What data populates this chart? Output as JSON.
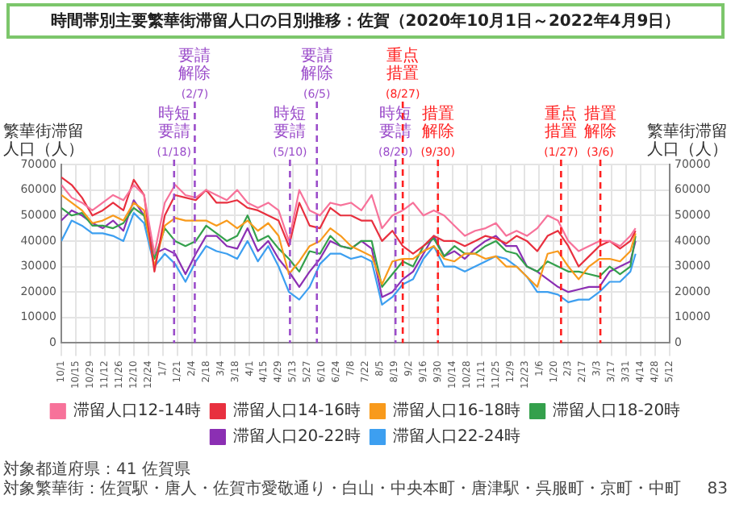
{
  "chart_data": {
    "type": "line",
    "title": "時間帯別主要繁華街滞留人口の日別推移：佐賀（2020年10月1日～2022年4月9日）",
    "ylabel": "繁華街滞留人口（人）",
    "y2label": "繁華街滞留人口（人）",
    "x": [
      "2020-10-01",
      "2020-10-11",
      "2020-10-21",
      "2020-10-31",
      "2020-11-10",
      "2020-11-20",
      "2020-11-30",
      "2020-12-10",
      "2020-12-20",
      "2020-12-30",
      "2021-01-09",
      "2021-01-19",
      "2021-01-29",
      "2021-02-08",
      "2021-02-18",
      "2021-02-28",
      "2021-03-10",
      "2021-03-20",
      "2021-03-30",
      "2021-04-09",
      "2021-04-19",
      "2021-04-29",
      "2021-05-09",
      "2021-05-19",
      "2021-05-29",
      "2021-06-08",
      "2021-06-18",
      "2021-06-28",
      "2021-07-08",
      "2021-07-18",
      "2021-07-28",
      "2021-08-07",
      "2021-08-17",
      "2021-08-27",
      "2021-09-06",
      "2021-09-16",
      "2021-09-26",
      "2021-10-06",
      "2021-10-16",
      "2021-10-26",
      "2021-11-05",
      "2021-11-15",
      "2021-11-25",
      "2021-12-05",
      "2021-12-15",
      "2021-12-25",
      "2022-01-04",
      "2022-01-14",
      "2022-01-24",
      "2022-02-03",
      "2022-02-13",
      "2022-02-23",
      "2022-03-05",
      "2022-03-15",
      "2022-03-25",
      "2022-04-04",
      "2022-04-09"
    ],
    "series": [
      {
        "name": "滞留人口12-14時",
        "color": "#f7729a",
        "values": [
          62000,
          57000,
          55000,
          52000,
          55000,
          58000,
          56000,
          62000,
          58000,
          35000,
          55000,
          62000,
          58000,
          57000,
          60000,
          58000,
          56000,
          60000,
          55000,
          53000,
          55000,
          52000,
          40000,
          60000,
          52000,
          50000,
          55000,
          54000,
          55000,
          52000,
          58000,
          45000,
          50000,
          52000,
          55000,
          50000,
          52000,
          50000,
          46000,
          42000,
          44000,
          45000,
          47000,
          42000,
          44000,
          42000,
          45000,
          50000,
          48000,
          40000,
          36000,
          38000,
          40000,
          40000,
          38000,
          42000,
          45000
        ]
      },
      {
        "name": "滞留人口14-16時",
        "color": "#e8303f",
        "values": [
          65000,
          62000,
          57000,
          50000,
          52000,
          55000,
          52000,
          64000,
          58000,
          28000,
          50000,
          58000,
          57000,
          56000,
          60000,
          55000,
          55000,
          56000,
          53000,
          52000,
          50000,
          48000,
          38000,
          55000,
          46000,
          45000,
          53000,
          50000,
          50000,
          48000,
          48000,
          40000,
          44000,
          38000,
          35000,
          38000,
          42000,
          40000,
          40000,
          38000,
          40000,
          42000,
          41000,
          39000,
          42000,
          40000,
          36000,
          42000,
          44000,
          38000,
          30000,
          34000,
          38000,
          40000,
          37000,
          40000,
          44000
        ]
      },
      {
        "name": "滞留人口16-18時",
        "color": "#f89a1c",
        "values": [
          58000,
          55000,
          52000,
          47000,
          48000,
          50000,
          48000,
          55000,
          52000,
          30000,
          46000,
          49000,
          48000,
          48000,
          48000,
          46000,
          48000,
          45000,
          48000,
          44000,
          47000,
          42000,
          27000,
          32000,
          38000,
          40000,
          45000,
          42000,
          38000,
          36000,
          34000,
          23000,
          32000,
          33000,
          33000,
          36000,
          38000,
          33000,
          32000,
          35000,
          35000,
          33000,
          34000,
          30000,
          30000,
          26000,
          22000,
          35000,
          36000,
          30000,
          25000,
          30000,
          33000,
          33000,
          32000,
          36000,
          43000
        ]
      },
      {
        "name": "滞留人口18-20時",
        "color": "#34a04c",
        "values": [
          53000,
          50000,
          51000,
          46000,
          46000,
          45000,
          47000,
          53000,
          50000,
          33000,
          45000,
          40000,
          38000,
          40000,
          46000,
          43000,
          40000,
          42000,
          50000,
          40000,
          42000,
          37000,
          33000,
          28000,
          36000,
          35000,
          42000,
          38000,
          37000,
          40000,
          40000,
          22000,
          27000,
          32000,
          30000,
          38000,
          41000,
          34000,
          38000,
          35000,
          35000,
          38000,
          40000,
          36000,
          35000,
          30000,
          28000,
          32000,
          30000,
          28000,
          28000,
          27000,
          26000,
          30000,
          27000,
          30000,
          42000
        ]
      },
      {
        "name": "滞留人口20-22時",
        "color": "#8b2fb3",
        "values": [
          48000,
          52000,
          50000,
          47000,
          45000,
          48000,
          44000,
          56000,
          50000,
          35000,
          37000,
          35000,
          27000,
          35000,
          42000,
          42000,
          38000,
          37000,
          45000,
          36000,
          40000,
          33000,
          28000,
          22000,
          28000,
          33000,
          40000,
          38000,
          37000,
          40000,
          37000,
          18000,
          20000,
          25000,
          28000,
          35000,
          42000,
          34000,
          36000,
          33000,
          37000,
          40000,
          42000,
          38000,
          38000,
          30000,
          28000,
          25000,
          22000,
          20000,
          21000,
          22000,
          22000,
          28000,
          30000,
          32000,
          40000
        ]
      },
      {
        "name": "滞留人口22-24時",
        "color": "#3d9ff0",
        "values": [
          40000,
          48000,
          46000,
          43000,
          43000,
          42000,
          40000,
          51000,
          47000,
          30000,
          35000,
          31000,
          24000,
          32000,
          38000,
          36000,
          35000,
          33000,
          40000,
          32000,
          38000,
          30000,
          20000,
          17000,
          22000,
          31000,
          35000,
          35000,
          33000,
          34000,
          32000,
          15000,
          18000,
          23000,
          25000,
          33000,
          38000,
          30000,
          30000,
          28000,
          30000,
          32000,
          34000,
          33000,
          30000,
          26000,
          20000,
          20000,
          19000,
          16000,
          17000,
          17000,
          20000,
          24000,
          24000,
          28000,
          35000
        ]
      }
    ],
    "xlim": [
      "2020-10-01",
      "2022-05-12"
    ],
    "xticks": [
      {
        "value": "2020-10-01",
        "label": "10/1"
      },
      {
        "value": "2020-10-15",
        "label": "10/15"
      },
      {
        "value": "2020-10-29",
        "label": "10/29"
      },
      {
        "value": "2020-11-12",
        "label": "11/12"
      },
      {
        "value": "2020-11-26",
        "label": "11/26"
      },
      {
        "value": "2020-12-10",
        "label": "12/10"
      },
      {
        "value": "2020-12-24",
        "label": "12/24"
      },
      {
        "value": "2021-01-07",
        "label": "1/7"
      },
      {
        "value": "2021-01-21",
        "label": "1/21"
      },
      {
        "value": "2021-02-04",
        "label": "2/4"
      },
      {
        "value": "2021-02-18",
        "label": "2/18"
      },
      {
        "value": "2021-03-04",
        "label": "3/4"
      },
      {
        "value": "2021-03-18",
        "label": "3/18"
      },
      {
        "value": "2021-04-01",
        "label": "4/1"
      },
      {
        "value": "2021-04-15",
        "label": "4/15"
      },
      {
        "value": "2021-04-29",
        "label": "4/29"
      },
      {
        "value": "2021-05-13",
        "label": "5/13"
      },
      {
        "value": "2021-05-27",
        "label": "5/27"
      },
      {
        "value": "2021-06-10",
        "label": "6/10"
      },
      {
        "value": "2021-06-24",
        "label": "6/24"
      },
      {
        "value": "2021-07-08",
        "label": "7/8"
      },
      {
        "value": "2021-07-22",
        "label": "7/22"
      },
      {
        "value": "2021-08-05",
        "label": "8/5"
      },
      {
        "value": "2021-08-19",
        "label": "8/19"
      },
      {
        "value": "2021-09-02",
        "label": "9/2"
      },
      {
        "value": "2021-09-16",
        "label": "9/16"
      },
      {
        "value": "2021-09-30",
        "label": "9/30"
      },
      {
        "value": "2021-10-14",
        "label": "10/14"
      },
      {
        "value": "2021-10-28",
        "label": "10/28"
      },
      {
        "value": "2021-11-11",
        "label": "11/11"
      },
      {
        "value": "2021-11-25",
        "label": "11/25"
      },
      {
        "value": "2021-12-09",
        "label": "12/9"
      },
      {
        "value": "2021-12-23",
        "label": "12/23"
      },
      {
        "value": "2022-01-06",
        "label": "1/6"
      },
      {
        "value": "2022-01-20",
        "label": "1/20"
      },
      {
        "value": "2022-02-03",
        "label": "2/3"
      },
      {
        "value": "2022-02-17",
        "label": "2/17"
      },
      {
        "value": "2022-03-03",
        "label": "3/3"
      },
      {
        "value": "2022-03-17",
        "label": "3/17"
      },
      {
        "value": "2022-03-31",
        "label": "3/31"
      },
      {
        "value": "2022-04-14",
        "label": "4/14"
      },
      {
        "value": "2022-04-28",
        "label": "4/28"
      },
      {
        "value": "2022-05-12",
        "label": "5/12"
      }
    ],
    "ylim": [
      0,
      70000
    ],
    "yticks": [
      0,
      10000,
      20000,
      30000,
      40000,
      50000,
      60000,
      70000
    ],
    "y2lim": [
      0,
      70000
    ],
    "y2ticks": [
      0,
      10000,
      20000,
      30000,
      40000,
      50000,
      60000,
      70000
    ],
    "ref_lines": [
      {
        "axis": "x",
        "value": "2021-01-18",
        "label": "時短要請(1/18)",
        "color": "#9b4dca",
        "line_style": "dashed"
      },
      {
        "axis": "x",
        "value": "2021-02-07",
        "label": "要請解除(2/7)",
        "color": "#9b4dca",
        "line_style": "dashed"
      },
      {
        "axis": "x",
        "value": "2021-05-10",
        "label": "時短要請(5/10)",
        "color": "#9b4dca",
        "line_style": "dashed"
      },
      {
        "axis": "x",
        "value": "2021-06-05",
        "label": "要請解除(6/5)",
        "color": "#9b4dca",
        "line_style": "dashed"
      },
      {
        "axis": "x",
        "value": "2021-08-20",
        "label": "時短要請(8/20)",
        "color": "#9b4dca",
        "line_style": "dashed"
      },
      {
        "axis": "x",
        "value": "2021-08-27",
        "label": "重点措置(8/27)",
        "color": "#ff2020",
        "line_style": "dashed"
      },
      {
        "axis": "x",
        "value": "2021-09-30",
        "label": "措置解除(9/30)",
        "color": "#ff2020",
        "line_style": "dashed"
      },
      {
        "axis": "x",
        "value": "2022-01-27",
        "label": "重点措置(1/27)",
        "color": "#ff2020",
        "line_style": "dashed"
      },
      {
        "axis": "x",
        "value": "2022-03-06",
        "label": "措置解除(3/6)",
        "color": "#ff2020",
        "line_style": "dashed"
      }
    ],
    "annotations": [
      "対象都道府県：41 佐賀県",
      "対象繁華街：佐賀駅・唐人・佐賀市愛敬通り・白山・中央本町・唐津駅・呉服町・京町・中町",
      "83"
    ],
    "grid": true,
    "legend": "bottom",
    "marker": "none",
    "line_style": "solid"
  }
}
